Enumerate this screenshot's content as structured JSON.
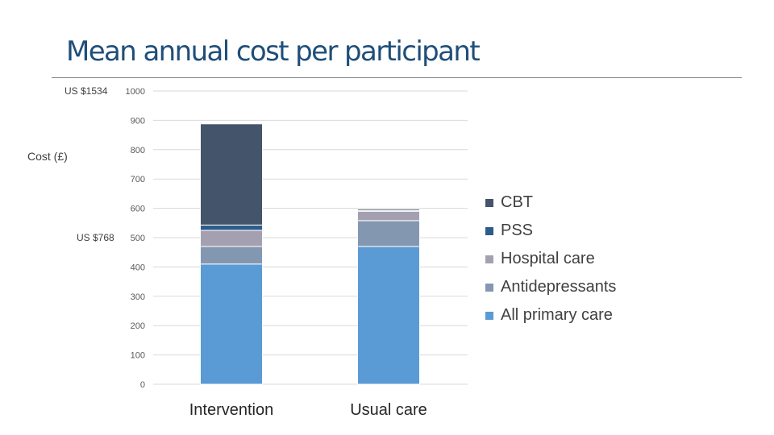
{
  "slide": {
    "title": "Mean annual cost per participant",
    "note_top": "US $1534",
    "note_mid": "US $768"
  },
  "chart_data": {
    "type": "bar",
    "stacked": true,
    "title": "",
    "xlabel": "",
    "ylabel": "Cost (£)",
    "ylim": [
      0,
      1000
    ],
    "yticks": [
      0,
      100,
      200,
      300,
      400,
      500,
      600,
      700,
      800,
      900,
      1000
    ],
    "grid": true,
    "legend_position": "right",
    "categories": [
      "Intervention",
      "Usual care"
    ],
    "series": [
      {
        "name": "All primary care",
        "color": "#5b9bd5",
        "values": [
          410,
          470
        ]
      },
      {
        "name": "Antidepressants",
        "color": "#8497b0",
        "values": [
          60,
          88
        ]
      },
      {
        "name": "Hospital care",
        "color": "#a5a0b1",
        "values": [
          55,
          32
        ]
      },
      {
        "name": "PSS",
        "color": "#2e5c8a",
        "values": [
          18,
          2
        ]
      },
      {
        "name": "CBT",
        "color": "#44546a",
        "values": [
          345,
          5
        ]
      }
    ],
    "legend_order": [
      "CBT",
      "PSS",
      "Hospital care",
      "Antidepressants",
      "All primary care"
    ]
  }
}
